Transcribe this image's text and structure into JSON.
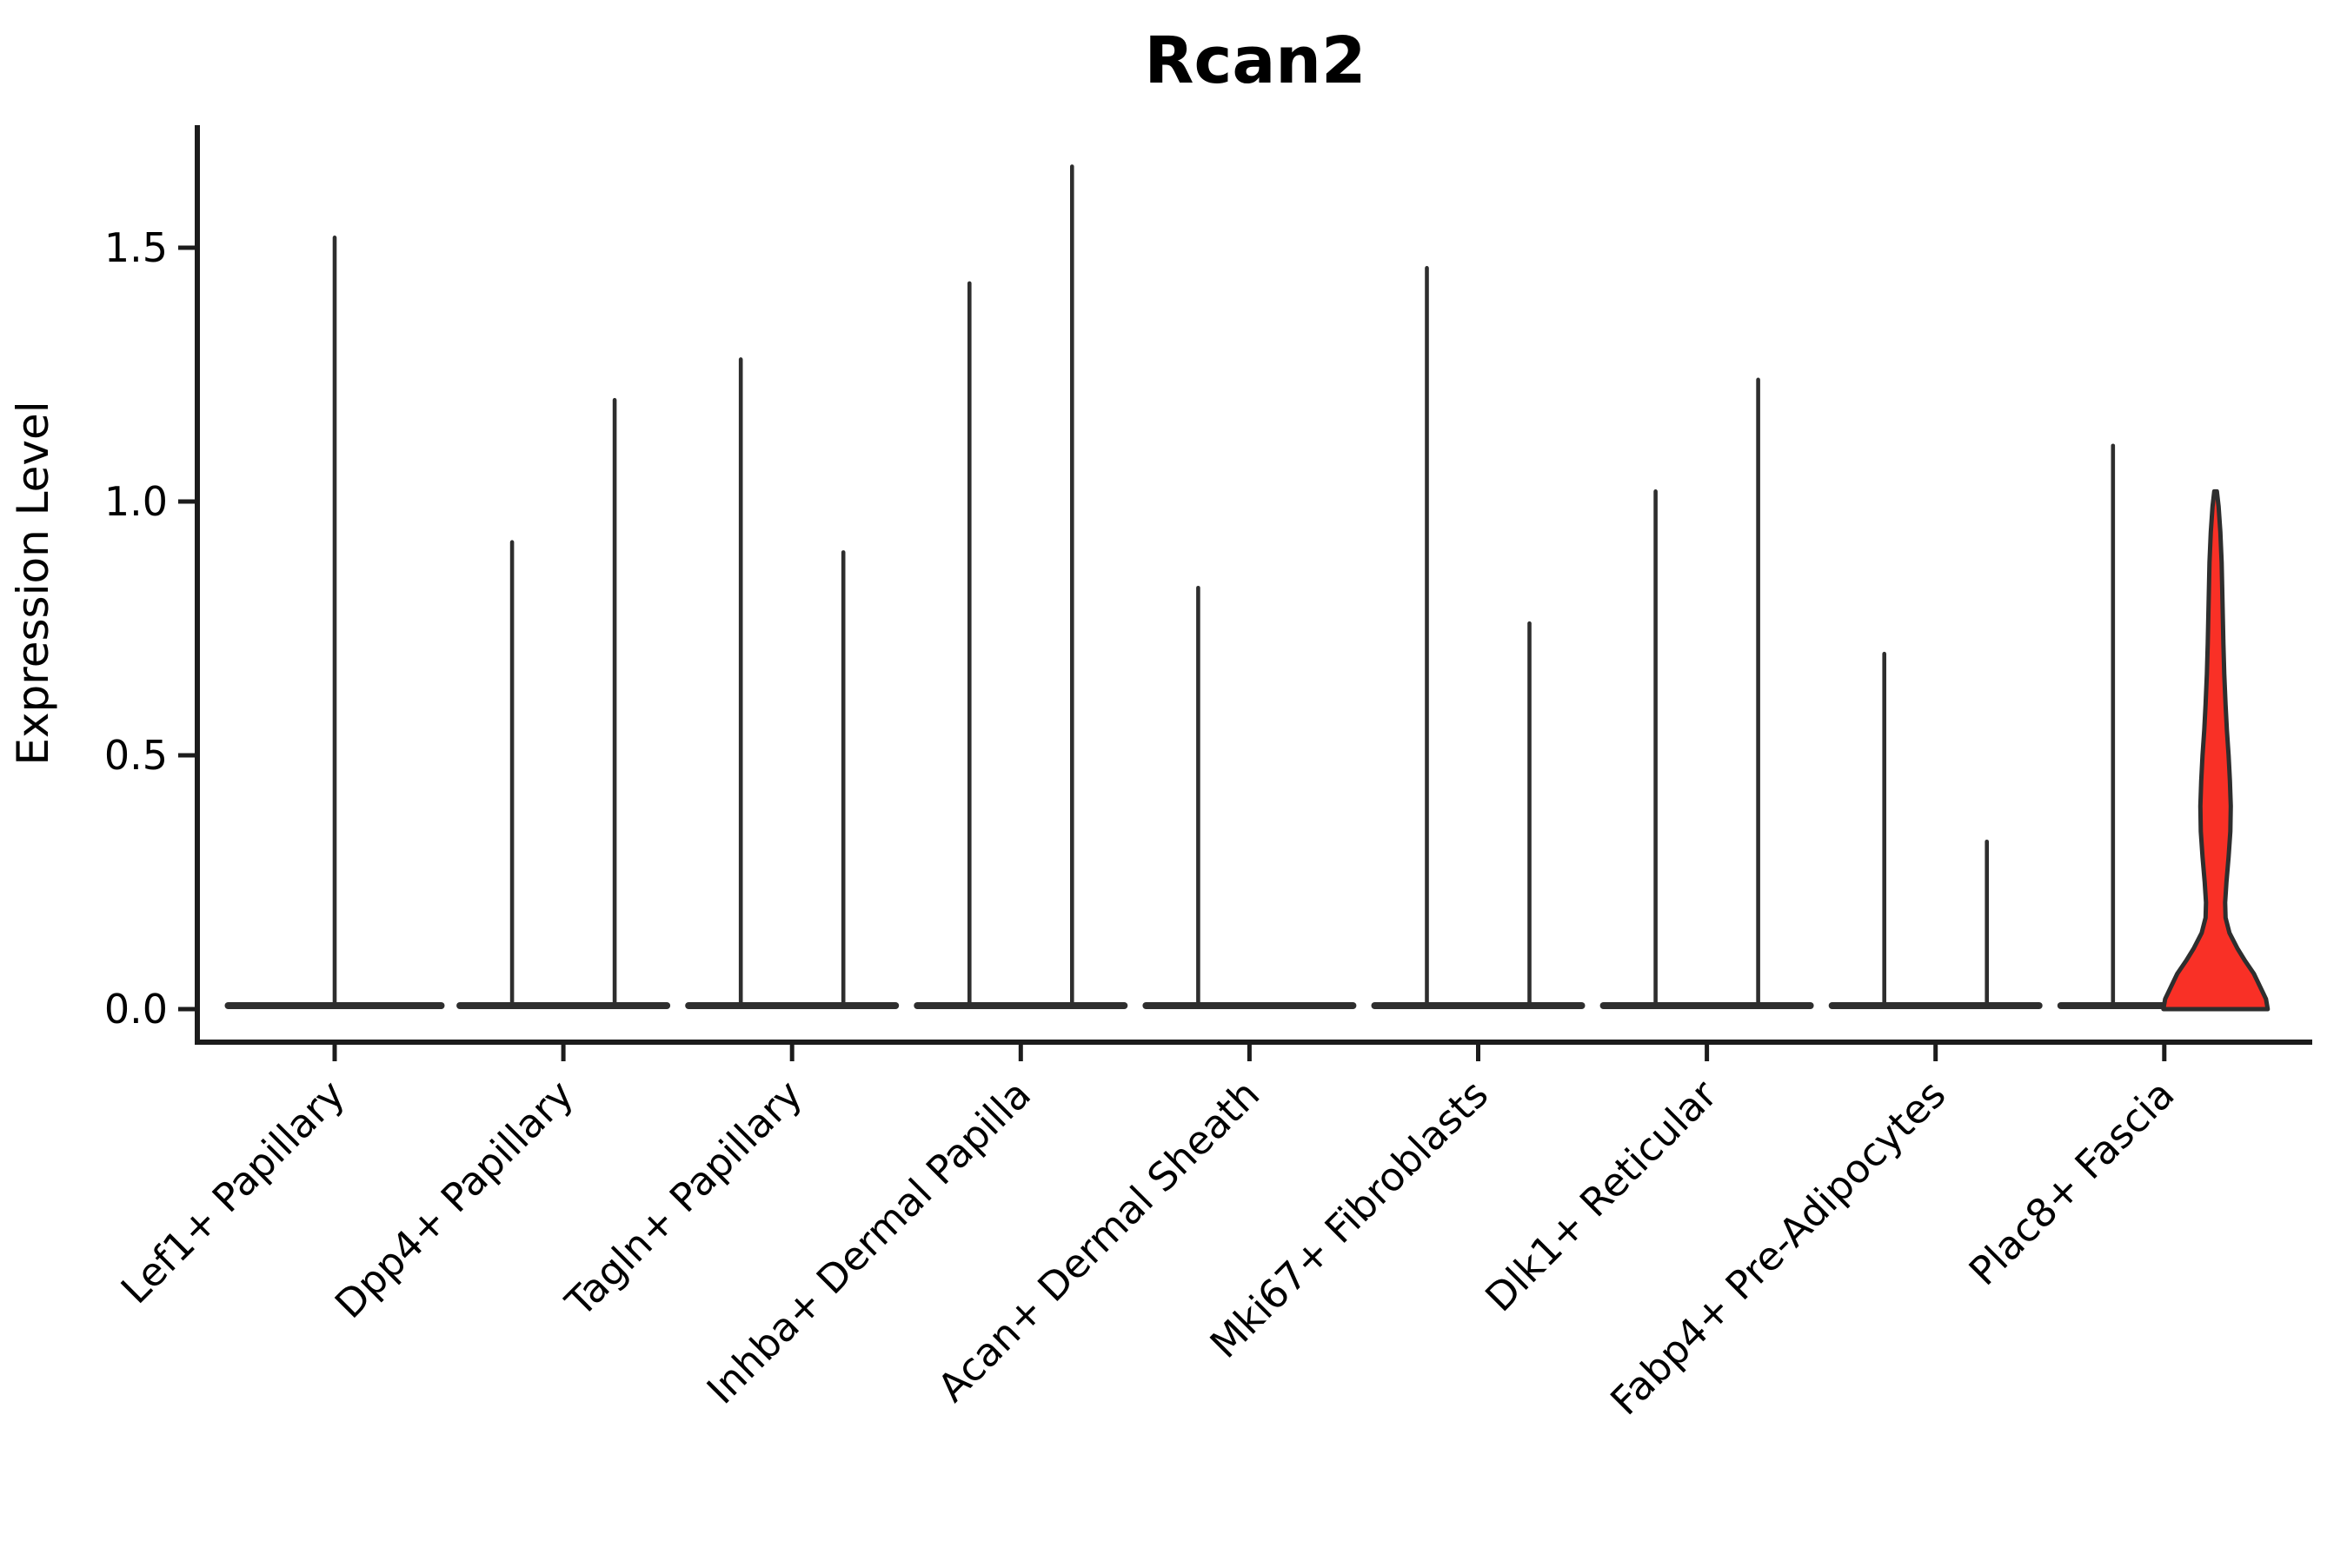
{
  "title": "Rcan2",
  "y_axis_label": "Expression Level",
  "colors": {
    "violin_line": "#2e2e2e",
    "axis": "#1c1c1c",
    "highlight_fill": "#f93026",
    "text": "#000000"
  },
  "chart_data": {
    "type": "violin",
    "title": "Rcan2",
    "xlabel": "",
    "ylabel": "Expression Level",
    "yticks": [
      0.0,
      0.5,
      1.0,
      1.5
    ],
    "ytick_labels": [
      "0.0",
      "0.5",
      "1.0",
      "1.5"
    ],
    "ylim": [
      0,
      1.74
    ],
    "grid": false,
    "legend": "none",
    "categories": [
      "Lef1+ Papillary",
      "Dpp4+ Papillary",
      "Tagln+ Papillary",
      "Inhba+ Dermal Papilla",
      "Acan+ Dermal Sheath",
      "Mki67+ Fibroblasts",
      "Dlk1+ Reticular",
      "Fabp4+ Pre-Adipocytes",
      "Plac8+ Fascia"
    ],
    "violins": [
      {
        "category_index": 0,
        "slot": "full",
        "max_expression": 1.52,
        "style": "spike"
      },
      {
        "category_index": 1,
        "slot": "left",
        "max_expression": 0.92,
        "style": "spike"
      },
      {
        "category_index": 1,
        "slot": "right",
        "max_expression": 1.2,
        "style": "spike"
      },
      {
        "category_index": 2,
        "slot": "left",
        "max_expression": 1.28,
        "style": "spike"
      },
      {
        "category_index": 2,
        "slot": "right",
        "max_expression": 0.9,
        "style": "spike"
      },
      {
        "category_index": 3,
        "slot": "left",
        "max_expression": 1.43,
        "style": "spike"
      },
      {
        "category_index": 3,
        "slot": "right",
        "max_expression": 1.66,
        "style": "spike"
      },
      {
        "category_index": 4,
        "slot": "left",
        "max_expression": 0.83,
        "style": "spike"
      },
      {
        "category_index": 4,
        "slot": "right",
        "max_expression": 0.0,
        "style": "flat"
      },
      {
        "category_index": 5,
        "slot": "left",
        "max_expression": 1.46,
        "style": "spike"
      },
      {
        "category_index": 5,
        "slot": "right",
        "max_expression": 0.76,
        "style": "spike"
      },
      {
        "category_index": 6,
        "slot": "left",
        "max_expression": 1.02,
        "style": "spike"
      },
      {
        "category_index": 6,
        "slot": "right",
        "max_expression": 1.24,
        "style": "spike"
      },
      {
        "category_index": 7,
        "slot": "left",
        "max_expression": 0.7,
        "style": "spike"
      },
      {
        "category_index": 7,
        "slot": "right",
        "max_expression": 0.33,
        "style": "spike"
      },
      {
        "category_index": 8,
        "slot": "left",
        "max_expression": 1.11,
        "style": "spike"
      },
      {
        "category_index": 8,
        "slot": "right",
        "max_expression": 1.02,
        "style": "filled"
      }
    ],
    "highlight_violin": {
      "category": "Plac8+ Fascia",
      "slot": "right",
      "fill": "#f93026",
      "max_expression": 1.02,
      "width_profile": [
        [
          0.0,
          60
        ],
        [
          0.02,
          58
        ],
        [
          0.045,
          51
        ],
        [
          0.07,
          44
        ],
        [
          0.095,
          34
        ],
        [
          0.12,
          25
        ],
        [
          0.15,
          16
        ],
        [
          0.18,
          11.5
        ],
        [
          0.21,
          11
        ],
        [
          0.25,
          12.5
        ],
        [
          0.3,
          15
        ],
        [
          0.35,
          17
        ],
        [
          0.4,
          17.5
        ],
        [
          0.45,
          16.5
        ],
        [
          0.5,
          15
        ],
        [
          0.55,
          13
        ],
        [
          0.6,
          11.5
        ],
        [
          0.66,
          10
        ],
        [
          0.72,
          9
        ],
        [
          0.8,
          8
        ],
        [
          0.88,
          7
        ],
        [
          0.94,
          5.5
        ],
        [
          0.99,
          3.5
        ],
        [
          1.02,
          1.5
        ]
      ]
    }
  }
}
